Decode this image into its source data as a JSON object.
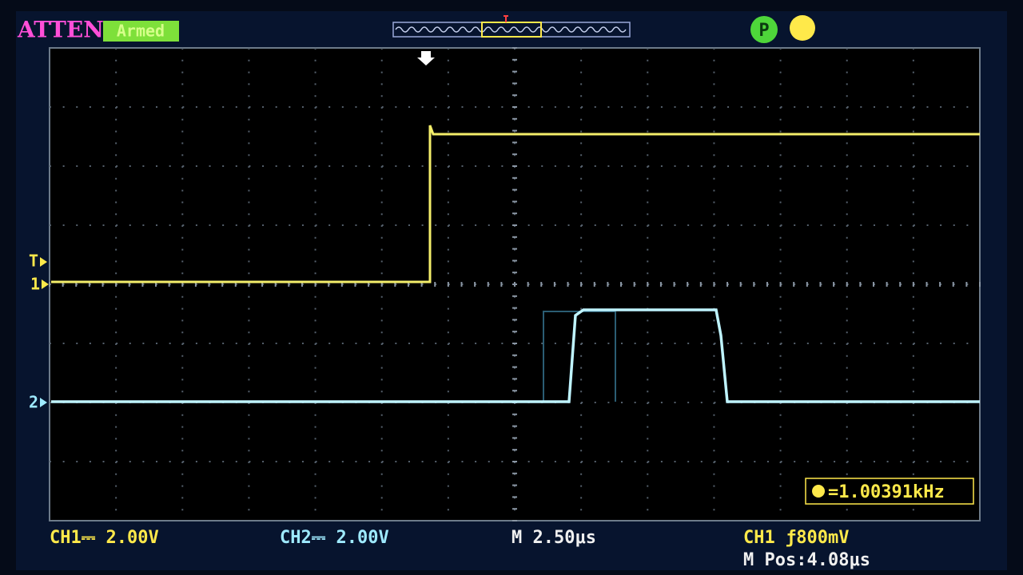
{
  "status": {
    "atten": "ATTEN",
    "state": "Armed",
    "mode_icon": "P"
  },
  "markers": {
    "trigger_level": "T",
    "ch1": "1",
    "ch2": "2"
  },
  "frequency": "=1.00391kHz",
  "footer": {
    "ch1": "CH1⎓ 2.00V",
    "ch2": "CH2⎓ 2.00V",
    "timebase": "M 2.50μs",
    "trigger": "CH1 ƒ800mV",
    "position": "M Pos:4.08μs"
  }
}
